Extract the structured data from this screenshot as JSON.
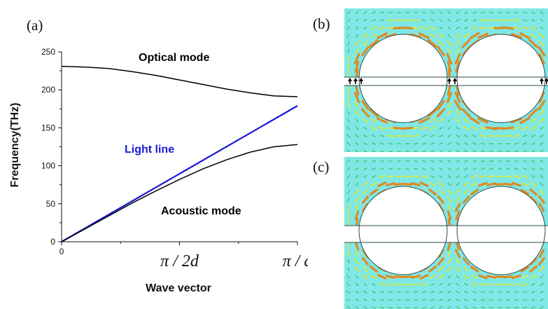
{
  "panels": {
    "a": "(a)",
    "b": "(b)",
    "c": "(c)"
  },
  "chart_data": {
    "type": "line",
    "xlabel": "Wave vector",
    "ylabel": "Frequency(THz)",
    "ylim": [
      0,
      250
    ],
    "yticks": [
      0,
      50,
      100,
      150,
      200,
      250
    ],
    "xticks": [
      {
        "value": 0,
        "label": "0"
      },
      {
        "value": 0.5,
        "label": "π / 2d"
      },
      {
        "value": 1,
        "label": "π / d"
      }
    ],
    "xlim": [
      0,
      1
    ],
    "grid": false,
    "series": [
      {
        "name": "Optical mode",
        "color": "#000000",
        "x": [
          0,
          0.1,
          0.2,
          0.3,
          0.4,
          0.5,
          0.6,
          0.7,
          0.8,
          0.9,
          1.0
        ],
        "values": [
          231,
          230,
          228,
          224,
          219,
          213,
          207,
          201,
          196,
          192,
          191
        ]
      },
      {
        "name": "Light line",
        "color": "#1a1ad6",
        "x": [
          0,
          1.0
        ],
        "values": [
          0,
          179
        ]
      },
      {
        "name": "Acoustic mode",
        "color": "#000000",
        "x": [
          0,
          0.1,
          0.2,
          0.3,
          0.4,
          0.5,
          0.6,
          0.7,
          0.8,
          0.9,
          1.0
        ],
        "values": [
          0,
          17,
          34,
          51,
          67,
          82,
          96,
          108,
          118,
          125,
          128
        ]
      }
    ],
    "annotations": [
      {
        "text": "Optical mode",
        "color": "#111111"
      },
      {
        "text": "Light line",
        "color": "#1a1ad6"
      },
      {
        "text": "Acoustic mode",
        "color": "#111111"
      }
    ]
  },
  "field_colors": {
    "background": "#7fe8e6",
    "arrow_hot": "#e08a1e",
    "arrow_mid": "#d8e838",
    "arrow_cool": "#3fbf5f"
  }
}
